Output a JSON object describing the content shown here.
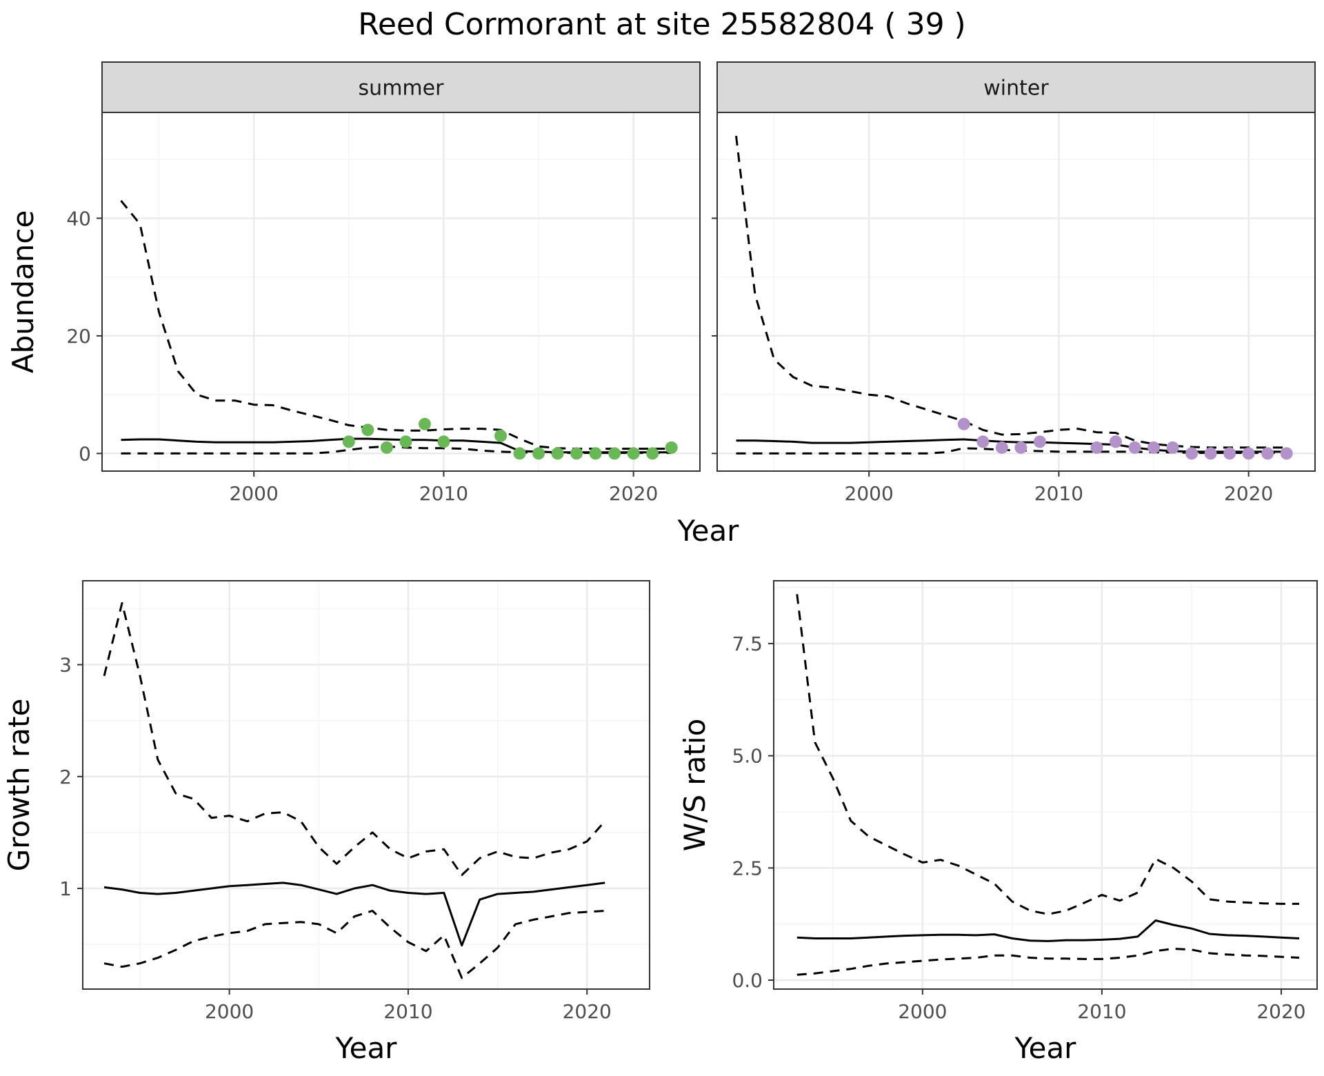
{
  "title": "Reed Cormorant at site 25582804 ( 39 )",
  "colors": {
    "summer_points": "#6ab758",
    "winter_points": "#b292c9",
    "strip_fill": "#d9d9d9",
    "grid_major": "#ebebeb",
    "grid_minor": "#f4f4f4",
    "line": "#000000"
  },
  "chart_data": [
    {
      "id": "abundance-summer",
      "type": "line",
      "facet": "summer",
      "xlabel": "Year",
      "ylabel": "Abundance",
      "xlim": [
        1992,
        2023.5
      ],
      "ylim": [
        -3,
        58
      ],
      "xticks": [
        2000,
        2010,
        2020
      ],
      "yticks": [
        0,
        20,
        40
      ],
      "grid": true,
      "line_years": [
        1993,
        1994,
        1995,
        1996,
        1997,
        1998,
        1999,
        2000,
        2001,
        2002,
        2003,
        2004,
        2005,
        2006,
        2007,
        2008,
        2009,
        2010,
        2011,
        2012,
        2013,
        2014,
        2015,
        2016,
        2017,
        2018,
        2019,
        2020,
        2021,
        2022
      ],
      "series": [
        {
          "style": "solid",
          "values": [
            2.3,
            2.4,
            2.4,
            2.2,
            2.0,
            1.9,
            1.9,
            1.9,
            1.9,
            2.0,
            2.1,
            2.3,
            2.5,
            2.5,
            2.4,
            2.3,
            2.3,
            2.2,
            2.2,
            2.0,
            1.8,
            0.4,
            0.3,
            0.2,
            0.2,
            0.2,
            0.2,
            0.2,
            0.2,
            0.2
          ]
        },
        {
          "style": "dashed",
          "values": [
            43,
            39,
            24,
            14,
            10,
            9,
            9,
            8.3,
            8.2,
            7.3,
            6.5,
            5.7,
            4.8,
            4.4,
            4.0,
            3.9,
            3.9,
            4.1,
            4.2,
            4.2,
            4.0,
            2.5,
            1.2,
            0.9,
            0.8,
            0.8,
            0.8,
            0.8,
            0.8,
            0.8
          ]
        },
        {
          "style": "dashed",
          "values": [
            0,
            0,
            0,
            0,
            0,
            0,
            0,
            0,
            0,
            0,
            0,
            0.2,
            0.6,
            1.0,
            1.2,
            1.0,
            0.9,
            0.9,
            0.8,
            0.5,
            0.3,
            0.2,
            0.1,
            0.1,
            0.1,
            0.1,
            0.1,
            0.1,
            0.1,
            0.1
          ]
        }
      ],
      "points": {
        "x": [
          2005,
          2006,
          2007,
          2008,
          2009,
          2010,
          2013,
          2014,
          2015,
          2016,
          2017,
          2018,
          2019,
          2020,
          2021,
          2022
        ],
        "y": [
          2,
          4,
          1,
          2,
          5,
          2,
          3,
          0,
          0,
          0,
          0,
          0,
          0,
          0,
          0,
          1
        ]
      }
    },
    {
      "id": "abundance-winter",
      "type": "line",
      "facet": "winter",
      "xlabel": "Year",
      "ylabel": "Abundance",
      "xlim": [
        1992,
        2023.5
      ],
      "ylim": [
        -3,
        58
      ],
      "xticks": [
        2000,
        2010,
        2020
      ],
      "yticks": [
        0,
        20,
        40
      ],
      "grid": true,
      "line_years": [
        1993,
        1994,
        1995,
        1996,
        1997,
        1998,
        1999,
        2000,
        2001,
        2002,
        2003,
        2004,
        2005,
        2006,
        2007,
        2008,
        2009,
        2010,
        2011,
        2012,
        2013,
        2014,
        2015,
        2016,
        2017,
        2018,
        2019,
        2020,
        2021,
        2022
      ],
      "series": [
        {
          "style": "solid",
          "values": [
            2.2,
            2.2,
            2.1,
            2.0,
            1.8,
            1.8,
            1.8,
            1.9,
            2.0,
            2.1,
            2.2,
            2.3,
            2.4,
            2.2,
            2.0,
            1.9,
            1.9,
            1.8,
            1.7,
            1.6,
            1.5,
            1.0,
            0.6,
            0.4,
            0.3,
            0.3,
            0.3,
            0.3,
            0.3,
            0.3
          ]
        },
        {
          "style": "dashed",
          "values": [
            54,
            27,
            16,
            13,
            11.5,
            11.2,
            10.6,
            10,
            9.7,
            8.5,
            7.5,
            6.5,
            5.5,
            4.0,
            3.2,
            3.3,
            3.6,
            4.0,
            4.2,
            3.6,
            3.5,
            2.2,
            1.6,
            1.3,
            1.1,
            1.0,
            1.0,
            1.0,
            1.0,
            1.0
          ]
        },
        {
          "style": "dashed",
          "values": [
            0,
            0,
            0,
            0,
            0,
            0,
            0,
            0,
            0,
            0,
            0,
            0.2,
            0.9,
            0.8,
            0.6,
            0.5,
            0.4,
            0.3,
            0.3,
            0.3,
            0.3,
            0.3,
            0.2,
            0.2,
            0.1,
            0.1,
            0.1,
            0.1,
            0.1,
            0.1
          ]
        }
      ],
      "points": {
        "x": [
          2005,
          2006,
          2007,
          2008,
          2009,
          2012,
          2013,
          2014,
          2015,
          2016,
          2017,
          2018,
          2019,
          2020,
          2021,
          2022
        ],
        "y": [
          5,
          2,
          1,
          1,
          2,
          1,
          2,
          1,
          1,
          1,
          0,
          0,
          0,
          0,
          0,
          0
        ]
      }
    },
    {
      "id": "growth-rate",
      "type": "line",
      "xlabel": "Year",
      "ylabel": "Growth rate",
      "xlim": [
        1991.8,
        2023.5
      ],
      "ylim": [
        0.1,
        3.75
      ],
      "xticks": [
        2000,
        2010,
        2020
      ],
      "yticks": [
        1,
        2,
        3
      ],
      "grid": true,
      "line_years": [
        1993,
        1994,
        1995,
        1996,
        1997,
        1998,
        1999,
        2000,
        2001,
        2002,
        2003,
        2004,
        2005,
        2006,
        2007,
        2008,
        2009,
        2010,
        2011,
        2012,
        2013,
        2014,
        2015,
        2016,
        2017,
        2018,
        2019,
        2020,
        2021
      ],
      "series": [
        {
          "style": "solid",
          "values": [
            1.01,
            0.99,
            0.96,
            0.95,
            0.96,
            0.98,
            1.0,
            1.02,
            1.03,
            1.04,
            1.05,
            1.03,
            0.99,
            0.95,
            1.0,
            1.03,
            0.98,
            0.96,
            0.95,
            0.96,
            0.49,
            0.9,
            0.95,
            0.96,
            0.97,
            0.99,
            1.01,
            1.03,
            1.05
          ]
        },
        {
          "style": "dashed",
          "values": [
            2.9,
            3.55,
            2.9,
            2.15,
            1.85,
            1.8,
            1.63,
            1.65,
            1.6,
            1.67,
            1.68,
            1.6,
            1.37,
            1.22,
            1.37,
            1.5,
            1.35,
            1.27,
            1.33,
            1.35,
            1.12,
            1.27,
            1.33,
            1.28,
            1.27,
            1.32,
            1.35,
            1.42,
            1.6
          ]
        },
        {
          "style": "dashed",
          "values": [
            0.33,
            0.3,
            0.33,
            0.38,
            0.45,
            0.53,
            0.57,
            0.6,
            0.62,
            0.68,
            0.69,
            0.7,
            0.68,
            0.6,
            0.75,
            0.8,
            0.65,
            0.52,
            0.44,
            0.58,
            0.2,
            0.33,
            0.47,
            0.68,
            0.72,
            0.75,
            0.78,
            0.79,
            0.8
          ]
        }
      ]
    },
    {
      "id": "ws-ratio",
      "type": "line",
      "xlabel": "Year",
      "ylabel": "W/S ratio",
      "xlim": [
        1991.7,
        2022
      ],
      "ylim": [
        -0.2,
        8.9
      ],
      "xticks": [
        2000,
        2010,
        2020
      ],
      "yticks": [
        0.0,
        2.5,
        5.0,
        7.5
      ],
      "ytick_labels": [
        "0.0",
        "2.5",
        "5.0",
        "7.5"
      ],
      "grid": true,
      "line_years": [
        1993,
        1994,
        1995,
        1996,
        1997,
        1998,
        1999,
        2000,
        2001,
        2002,
        2003,
        2004,
        2005,
        2006,
        2007,
        2008,
        2009,
        2010,
        2011,
        2012,
        2013,
        2014,
        2015,
        2016,
        2017,
        2018,
        2019,
        2020,
        2021
      ],
      "series": [
        {
          "style": "solid",
          "values": [
            0.95,
            0.93,
            0.93,
            0.93,
            0.95,
            0.97,
            0.99,
            1.0,
            1.01,
            1.01,
            1.0,
            1.02,
            0.93,
            0.88,
            0.87,
            0.89,
            0.89,
            0.9,
            0.92,
            0.97,
            1.33,
            1.23,
            1.15,
            1.03,
            1.0,
            0.99,
            0.97,
            0.95,
            0.93
          ]
        },
        {
          "style": "dashed",
          "values": [
            8.6,
            5.3,
            4.5,
            3.55,
            3.2,
            3.0,
            2.8,
            2.62,
            2.68,
            2.55,
            2.35,
            2.15,
            1.75,
            1.55,
            1.47,
            1.55,
            1.72,
            1.9,
            1.77,
            1.95,
            2.7,
            2.5,
            2.2,
            1.8,
            1.75,
            1.73,
            1.71,
            1.7,
            1.7
          ]
        },
        {
          "style": "dashed",
          "values": [
            0.12,
            0.15,
            0.2,
            0.25,
            0.32,
            0.37,
            0.4,
            0.43,
            0.46,
            0.48,
            0.5,
            0.55,
            0.55,
            0.5,
            0.48,
            0.48,
            0.47,
            0.47,
            0.5,
            0.55,
            0.65,
            0.7,
            0.68,
            0.6,
            0.57,
            0.55,
            0.54,
            0.52,
            0.5
          ]
        }
      ]
    }
  ]
}
